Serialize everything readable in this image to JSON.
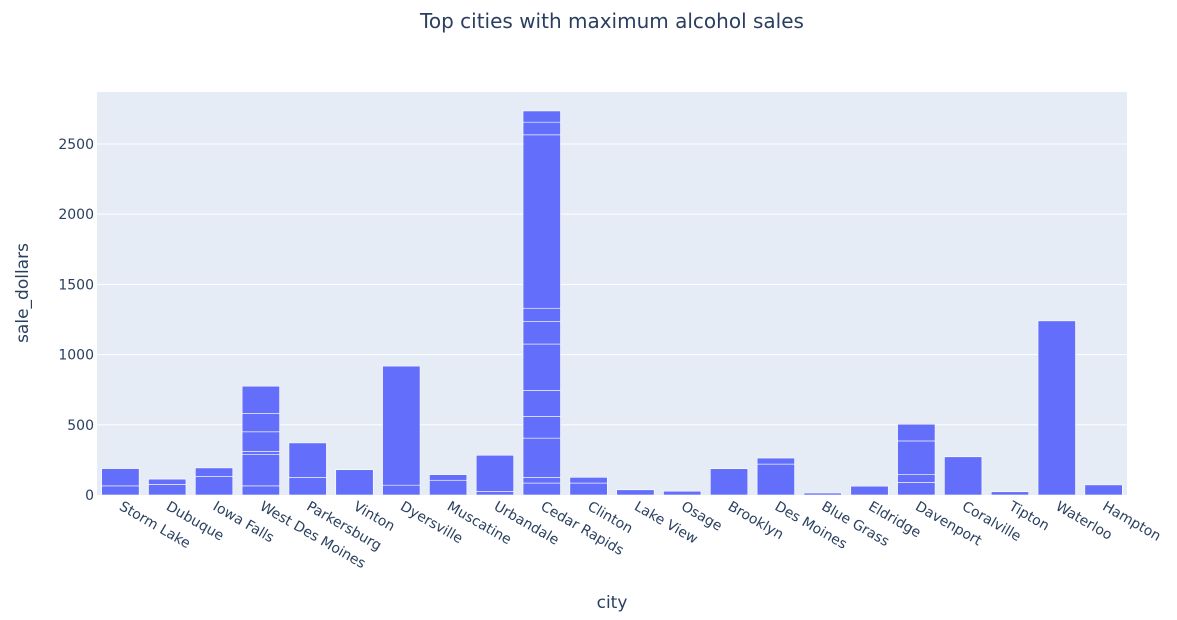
{
  "chart_data": {
    "type": "bar",
    "title": "Top cities with maximum alcohol sales",
    "xlabel": "city",
    "ylabel": "sale_dollars",
    "ylim": [
      0,
      2870
    ],
    "yticks": [
      0,
      500,
      1000,
      1500,
      2000,
      2500
    ],
    "grid": true,
    "bar_color": "#636efa",
    "plot_background": "#e5ecf6",
    "text_color": "#2a3f5f",
    "categories": [
      "Storm Lake",
      "Dubuque",
      "Iowa Falls",
      "West Des Moines",
      "Parkersburg",
      "Vinton",
      "Dyersville",
      "Muscatine",
      "Urbandale",
      "Cedar Rapids",
      "Clinton",
      "Lake View",
      "Osage",
      "Brooklyn",
      "Des Moines",
      "Blue Grass",
      "Eldridge",
      "Davenport",
      "Coralville",
      "Tipton",
      "Waterloo",
      "Hampton"
    ],
    "values": [
      188,
      113,
      193,
      775,
      371,
      180,
      918,
      145,
      283,
      2735,
      126,
      37,
      27,
      187,
      263,
      14,
      63,
      504,
      272,
      23,
      1240,
      72
    ],
    "segments": [
      [
        65,
        123
      ],
      [
        75,
        38
      ],
      [
        133,
        60
      ],
      [
        65,
        225,
        20,
        140,
        130,
        195
      ],
      [
        125,
        246
      ],
      [
        180
      ],
      [
        70,
        848
      ],
      [
        105,
        40
      ],
      [
        25,
        258
      ],
      [
        85,
        40,
        280,
        155,
        185,
        330,
        160,
        95,
        1235,
        90,
        80
      ],
      [
        85,
        41
      ],
      [
        37
      ],
      [
        27
      ],
      [
        187
      ],
      [
        220,
        43
      ],
      [
        14
      ],
      [
        63
      ],
      [
        90,
        55,
        240,
        119
      ],
      [
        272
      ],
      [
        23
      ],
      [
        1240
      ],
      [
        72
      ]
    ]
  }
}
